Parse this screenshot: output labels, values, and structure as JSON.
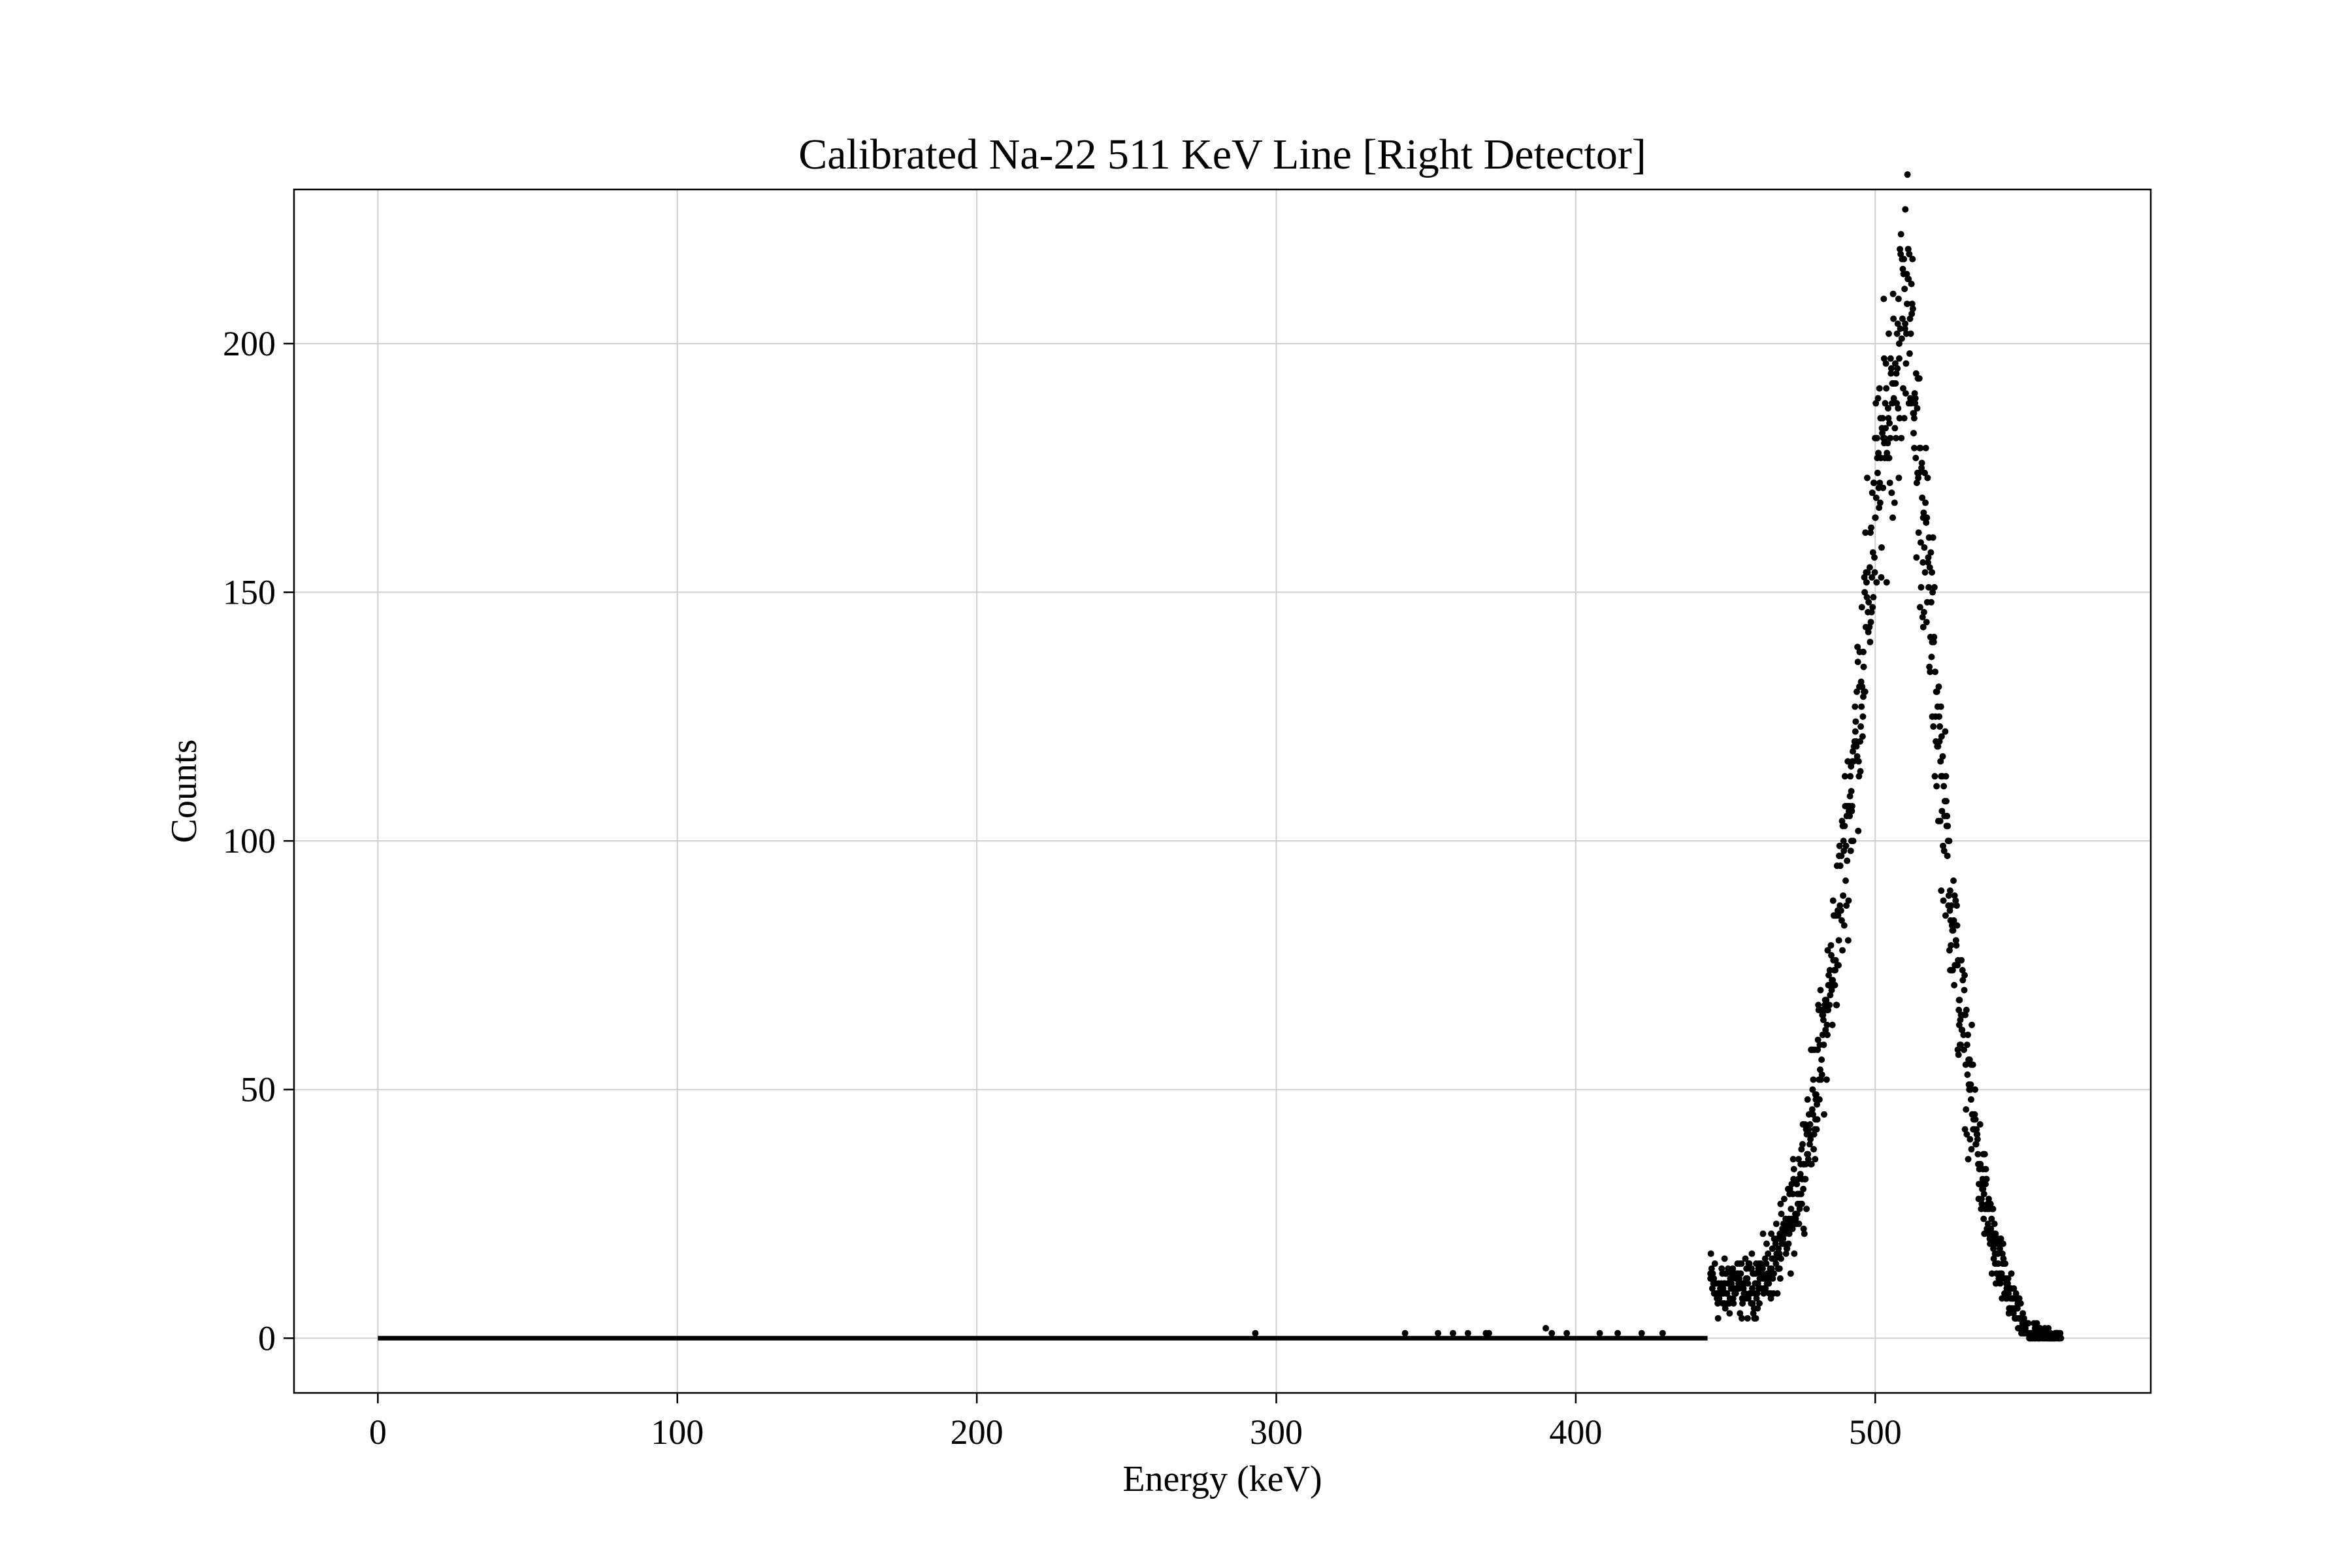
{
  "chart_data": {
    "type": "scatter",
    "title": "Calibrated Na-22 511 KeV Line [Right Detector]",
    "xlabel": "Energy (keV)",
    "ylabel": "Counts",
    "xlim": [
      -28,
      592
    ],
    "ylim": [
      -11,
      231
    ],
    "xticks": [
      0,
      100,
      200,
      300,
      400,
      500
    ],
    "yticks": [
      0,
      50,
      100,
      150,
      200
    ],
    "grid": true,
    "marker_color": "#000000",
    "series": [
      {
        "points": [
          [
            293,
            1
          ],
          [
            343,
            1
          ],
          [
            354,
            1
          ],
          [
            359,
            1
          ],
          [
            364,
            1
          ],
          [
            370,
            1
          ],
          [
            371,
            1
          ],
          [
            390,
            2
          ],
          [
            392,
            1
          ],
          [
            397,
            1
          ],
          [
            408,
            1
          ],
          [
            414,
            1
          ],
          [
            422,
            1
          ],
          [
            429,
            1
          ],
          [
            445,
            12
          ],
          [
            448,
            9
          ],
          [
            452,
            11
          ],
          [
            456,
            10
          ],
          [
            460,
            11
          ],
          [
            464,
            13
          ],
          [
            468,
            17
          ],
          [
            472,
            24
          ],
          [
            476,
            35
          ],
          [
            480,
            49
          ],
          [
            484,
            66
          ],
          [
            488,
            86
          ],
          [
            492,
            110
          ],
          [
            496,
            138
          ],
          [
            500,
            165
          ],
          [
            503,
            180
          ],
          [
            506,
            192
          ],
          [
            508,
            200
          ],
          [
            510,
            204
          ],
          [
            511,
            219
          ],
          [
            513,
            185
          ],
          [
            516,
            165
          ],
          [
            519,
            140
          ],
          [
            522,
            113
          ],
          [
            525,
            90
          ],
          [
            528,
            68
          ],
          [
            532,
            48
          ],
          [
            536,
            30
          ],
          [
            540,
            17
          ],
          [
            544,
            10
          ],
          [
            548,
            4
          ],
          [
            551,
            1
          ],
          [
            555,
            0
          ],
          [
            562,
            0
          ]
        ]
      }
    ]
  }
}
